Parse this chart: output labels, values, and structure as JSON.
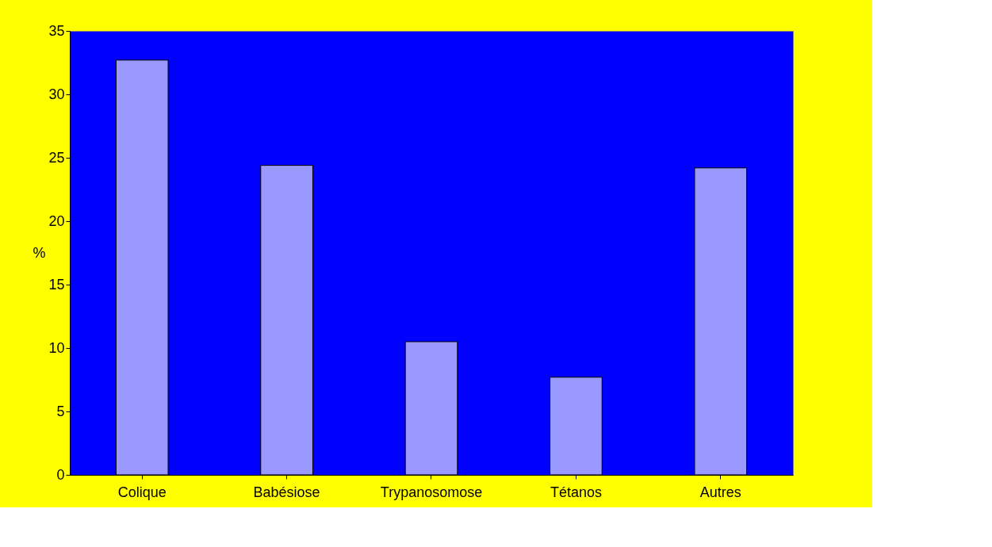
{
  "chart_data": {
    "type": "bar",
    "categories": [
      "Colique",
      "Babésiose",
      "Trypanosomose",
      "Tétanos",
      "Autres"
    ],
    "values": [
      32.7,
      24.4,
      10.5,
      7.7,
      24.2
    ],
    "color": "#9999ff",
    "ylabel": "%",
    "ylim": [
      0,
      35
    ],
    "yticks": [
      0,
      5,
      10,
      15,
      20,
      25,
      30,
      35
    ],
    "grid": false
  }
}
